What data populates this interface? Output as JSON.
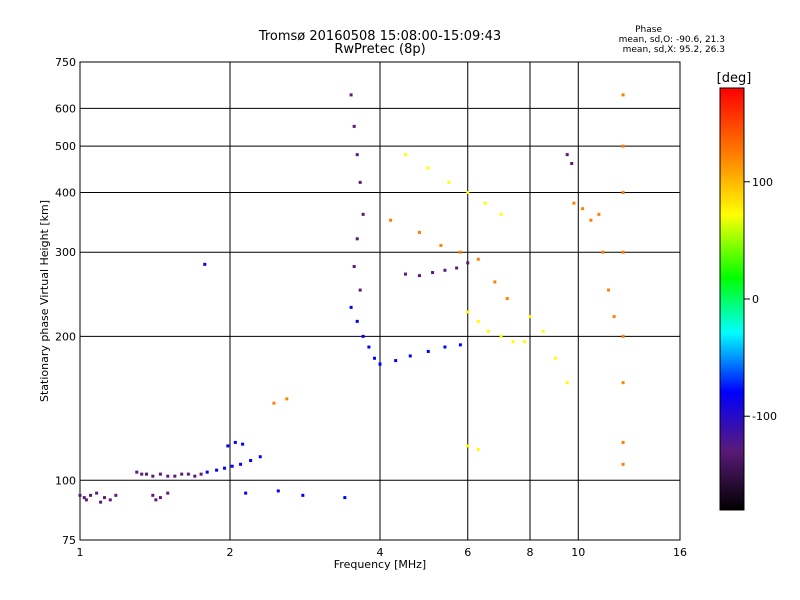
{
  "chart_data": {
    "type": "scatter",
    "title": "Tromsø 20160508 15:08:00-15:09:43",
    "subtitle": "RwPretec (8p)",
    "xlabel": "Frequency [MHz]",
    "ylabel": "Stationary phase Virtual Height [km]",
    "x_scale": "log",
    "y_scale": "log",
    "xlim": [
      1,
      16
    ],
    "ylim": [
      75,
      750
    ],
    "x_ticks": [
      1,
      2,
      4,
      6,
      8,
      10,
      16
    ],
    "y_ticks": [
      75,
      100,
      200,
      300,
      400,
      500,
      600,
      750
    ],
    "grid": true,
    "stats": {
      "heading": "Phase",
      "line_o": "mean, sd,O: -90.6, 21.3",
      "line_x": "mean, sd,X:  95.2, 26.3"
    },
    "colorbar": {
      "label": "[deg]",
      "range": [
        -180,
        180
      ],
      "ticks": [
        -100,
        0,
        100
      ],
      "palette": [
        "#000000",
        "#5a1a78",
        "#0000ff",
        "#00ffff",
        "#00ff00",
        "#ffff00",
        "#ff8000",
        "#ff0000"
      ]
    },
    "series": [
      {
        "x": [
          1.0,
          1.02,
          1.05,
          1.08,
          1.12,
          1.15,
          1.18,
          1.03,
          1.1
        ],
        "y": [
          93,
          92,
          93,
          94,
          92,
          91,
          93,
          91,
          90
        ],
        "phase": -110
      },
      {
        "x": [
          1.3,
          1.33,
          1.36,
          1.4,
          1.45,
          1.5,
          1.55,
          1.6,
          1.65,
          1.7,
          1.75
        ],
        "y": [
          104,
          103,
          103,
          102,
          103,
          102,
          102,
          103,
          103,
          102,
          103
        ],
        "phase": -105
      },
      {
        "x": [
          1.4,
          1.42,
          1.45,
          1.5
        ],
        "y": [
          93,
          91,
          92,
          94
        ],
        "phase": -110
      },
      {
        "x": [
          1.8,
          1.88,
          1.95,
          2.02,
          2.1,
          2.2,
          2.3
        ],
        "y": [
          104,
          105,
          106,
          107,
          108,
          110,
          112
        ],
        "phase": -100
      },
      {
        "x": [
          1.98,
          2.05,
          2.12
        ],
        "y": [
          118,
          120,
          119
        ],
        "phase": -95
      },
      {
        "x": [
          1.78,
          2.15,
          2.5,
          2.8,
          3.4
        ],
        "y": [
          283,
          94,
          95,
          93,
          92
        ],
        "phase": -95
      },
      {
        "x": [
          2.45,
          2.6
        ],
        "y": [
          145,
          148
        ],
        "phase": 110
      },
      {
        "x": [
          3.5,
          3.55,
          3.6,
          3.65,
          3.7,
          3.6,
          3.55,
          3.65
        ],
        "y": [
          640,
          550,
          480,
          420,
          360,
          320,
          280,
          250
        ],
        "phase": -110
      },
      {
        "x": [
          3.5,
          3.6,
          3.7,
          3.8,
          3.9,
          4.0
        ],
        "y": [
          230,
          215,
          200,
          190,
          180,
          175
        ],
        "phase": -100
      },
      {
        "x": [
          4.0,
          4.3,
          4.6,
          5.0,
          5.4,
          5.8
        ],
        "y": [
          175,
          178,
          182,
          186,
          190,
          192
        ],
        "phase": -100
      },
      {
        "x": [
          4.5,
          4.8,
          5.1,
          5.4,
          5.7,
          6.0
        ],
        "y": [
          270,
          268,
          272,
          275,
          278,
          285
        ],
        "phase": -110
      },
      {
        "x": [
          4.2,
          4.8,
          5.3,
          5.8,
          6.3,
          6.8,
          7.2
        ],
        "y": [
          350,
          330,
          310,
          300,
          290,
          260,
          240
        ],
        "phase": 110
      },
      {
        "x": [
          4.5,
          5.0,
          5.5,
          6.0,
          6.5,
          7.0
        ],
        "y": [
          480,
          450,
          420,
          400,
          380,
          360
        ],
        "phase": 60
      },
      {
        "x": [
          6.0,
          6.3,
          6.6,
          7.0,
          7.4,
          7.8
        ],
        "y": [
          225,
          215,
          205,
          200,
          195,
          195
        ],
        "phase": 95
      },
      {
        "x": [
          6.0,
          6.3
        ],
        "y": [
          118,
          116
        ],
        "phase": 100
      },
      {
        "x": [
          8.0,
          8.5,
          9.0,
          9.5
        ],
        "y": [
          220,
          205,
          180,
          160
        ],
        "phase": 60
      },
      {
        "x": [
          9.8,
          10.2,
          10.6,
          11.0
        ],
        "y": [
          380,
          370,
          350,
          360
        ],
        "phase": 110
      },
      {
        "x": [
          12.3,
          12.3,
          12.3,
          12.3,
          12.3,
          12.3,
          12.3,
          12.3
        ],
        "y": [
          640,
          500,
          400,
          300,
          200,
          160,
          120,
          108
        ],
        "phase": 150
      },
      {
        "x": [
          11.2,
          11.5,
          11.8
        ],
        "y": [
          300,
          250,
          220
        ],
        "phase": 150
      },
      {
        "x": [
          9.5,
          9.7
        ],
        "y": [
          480,
          460
        ],
        "phase": -110
      }
    ]
  }
}
